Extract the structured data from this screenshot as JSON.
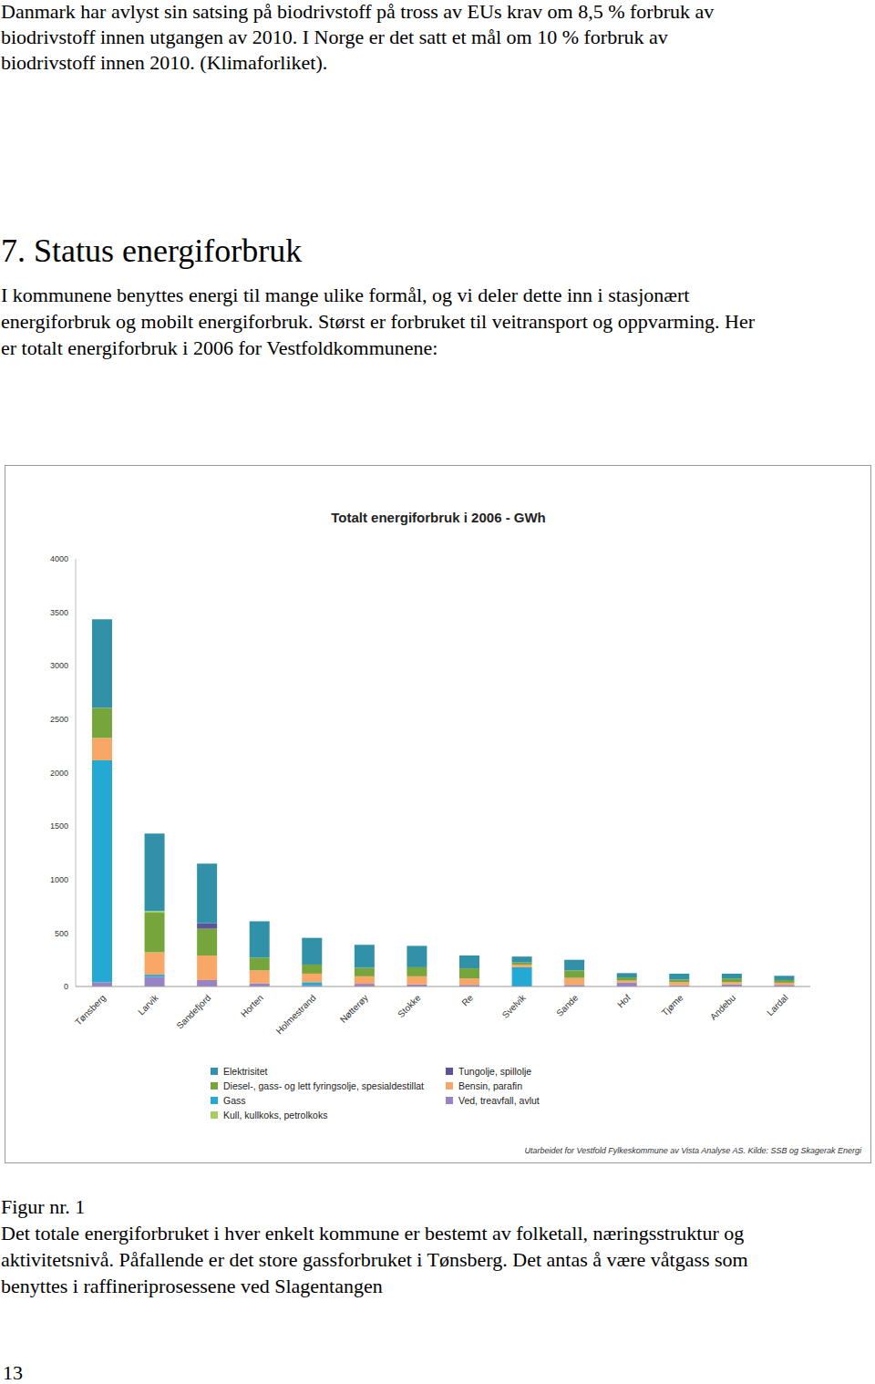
{
  "document": {
    "intro": [
      "Danmark har avlyst sin satsing på biodrivstoff på tross av EUs krav om 8,5 % forbruk av",
      "biodrivstoff innen utgangen av 2010. I Norge er det satt et mål om 10 % forbruk av",
      "biodrivstoff innen 2010. (Klimaforliket)."
    ],
    "heading": "7. Status energiforbruk",
    "paragraph": [
      "I kommunene benyttes energi til mange ulike formål, og vi deler dette inn i stasjonært",
      "energiforbruk og mobilt energiforbruk. Størst er forbruket til veitransport og oppvarming. Her",
      "er totalt energiforbruk i 2006 for Vestfoldkommunene:"
    ],
    "figure_label": "Figur nr. 1",
    "caption": [
      "Det totale energiforbruket i hver enkelt kommune er bestemt av folketall, næringsstruktur og",
      "aktivitetsnivå. Påfallende er det store gassforbruket i Tønsberg. Det antas å være våtgass som",
      "benyttes i raffineriprosessene ved Slagentangen"
    ],
    "page_number": "13",
    "chart_source": "Utarbeidet for Vestfold Fylkeskommune av Vista Analyse AS. Kilde: SSB og Skagerak Energi"
  },
  "chart_data": {
    "type": "bar",
    "title": "Totalt energiforbruk i 2006 - GWh",
    "stacked": true,
    "grid": false,
    "legend": "bottom",
    "categories": [
      "Tønsberg",
      "Larvik",
      "Sandefjord",
      "Horten",
      "Holmestrand",
      "Nøtterøy",
      "Stokke",
      "Re",
      "Svelvik",
      "Sande",
      "Hof",
      "Tjøme",
      "Andebu",
      "Lardal"
    ],
    "ylim": [
      0,
      4000
    ],
    "yticks": [
      0,
      500,
      1000,
      1500,
      2000,
      2500,
      3000,
      3500,
      4000
    ],
    "series": [
      {
        "name": "Elektrisitet",
        "color": "#3091a8",
        "values": [
          830,
          725,
          560,
          340,
          250,
          215,
          200,
          120,
          55,
          100,
          40,
          55,
          45,
          40
        ]
      },
      {
        "name": "Diesel-, gass- og lett fyringsolje, spesialdestillat",
        "color": "#76a63b",
        "values": [
          280,
          370,
          250,
          120,
          85,
          80,
          85,
          95,
          20,
          70,
          30,
          25,
          35,
          25
        ]
      },
      {
        "name": "Gass",
        "color": "#22a9d4",
        "values": [
          2075,
          20,
          0,
          0,
          30,
          0,
          0,
          0,
          180,
          0,
          0,
          0,
          0,
          0
        ]
      },
      {
        "name": "Kull, kullkoks, petrolkoks",
        "color": "#a3cf62",
        "values": [
          0,
          15,
          0,
          0,
          0,
          0,
          0,
          0,
          0,
          0,
          0,
          0,
          0,
          0
        ]
      },
      {
        "name": "Tungolje, spillolje",
        "color": "#5b5598",
        "values": [
          0,
          0,
          50,
          0,
          0,
          0,
          0,
          0,
          0,
          0,
          0,
          0,
          0,
          0
        ]
      },
      {
        "name": "Bensin, parafin",
        "color": "#f8a766",
        "values": [
          210,
          210,
          230,
          120,
          80,
          70,
          75,
          60,
          25,
          65,
          20,
          30,
          20,
          20
        ]
      },
      {
        "name": "Ved, treavfall, avlut",
        "color": "#9883c6",
        "values": [
          40,
          90,
          60,
          30,
          10,
          25,
          20,
          15,
          0,
          15,
          35,
          10,
          20,
          15
        ]
      }
    ]
  }
}
